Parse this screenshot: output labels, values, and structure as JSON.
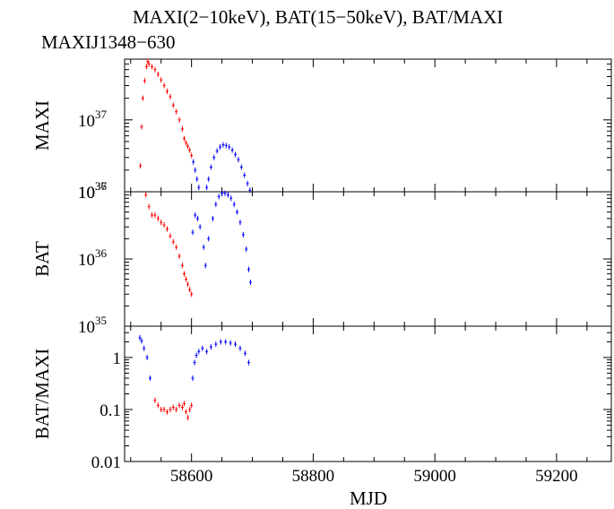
{
  "chart_data": {
    "type": "scatter",
    "title": "MAXI(2−10keV), BAT(15−50keV), BAT/MAXI",
    "subtitle": "MAXIJ1348−630",
    "xlabel": "MJD",
    "xlim": [
      58490,
      59290
    ],
    "xticks": [
      58600,
      58800,
      59000,
      59200
    ],
    "colors": {
      "early": "#ff0000",
      "late": "#0000ff"
    },
    "panels": [
      {
        "name": "MAXI",
        "ylabel": "MAXI",
        "scale": "log",
        "ylim": [
          1e+36,
          7e+37
        ],
        "yticks": [
          {
            "value": 1e+36,
            "base": "10",
            "exp": "36"
          },
          {
            "value": 1e+37,
            "base": "10",
            "exp": "37"
          }
        ],
        "series": [
          {
            "color": "early",
            "points": [
              [
                58516,
                2.3e+36
              ],
              [
                58518,
                8e+36
              ],
              [
                58520,
                2e+37
              ],
              [
                58523,
                3.5e+37
              ],
              [
                58526,
                5.5e+37
              ],
              [
                58528,
                6.5e+37
              ],
              [
                58530,
                6e+37
              ],
              [
                58535,
                5.5e+37
              ],
              [
                58540,
                5e+37
              ],
              [
                58545,
                4.3e+37
              ],
              [
                58550,
                3.6e+37
              ],
              [
                58555,
                3e+37
              ],
              [
                58560,
                2.5e+37
              ],
              [
                58565,
                2.1e+37
              ],
              [
                58570,
                1.6e+37
              ],
              [
                58575,
                1.3e+37
              ],
              [
                58580,
                1e+37
              ],
              [
                58585,
                7.5e+36
              ],
              [
                58588,
                5.5e+36
              ],
              [
                58591,
                4.8e+36
              ],
              [
                58594,
                4.3e+36
              ],
              [
                58597,
                3.8e+36
              ],
              [
                58600,
                3.2e+36
              ]
            ]
          },
          {
            "color": "late",
            "points": [
              [
                58603,
                2.6e+36
              ],
              [
                58606,
                2e+36
              ],
              [
                58609,
                1.5e+36
              ],
              [
                58612,
                1.15e+36
              ],
              [
                58625,
                1.15e+36
              ],
              [
                58628,
                1.5e+36
              ],
              [
                58632,
                2.2e+36
              ],
              [
                58637,
                3e+36
              ],
              [
                58642,
                3.7e+36
              ],
              [
                58647,
                4.2e+36
              ],
              [
                58652,
                4.5e+36
              ],
              [
                58657,
                4.4e+36
              ],
              [
                58662,
                4.2e+36
              ],
              [
                58667,
                3.8e+36
              ],
              [
                58672,
                3.3e+36
              ],
              [
                58677,
                2.8e+36
              ],
              [
                58682,
                2.2e+36
              ],
              [
                58687,
                1.7e+36
              ],
              [
                58692,
                1.3e+36
              ],
              [
                58696,
                1.05e+36
              ]
            ]
          }
        ]
      },
      {
        "name": "BAT",
        "ylabel": "BAT",
        "scale": "log",
        "ylim": [
          1e+35,
          1e+37
        ],
        "yticks": [
          {
            "value": 1e+35,
            "base": "10",
            "exp": "35"
          },
          {
            "value": 1e+36,
            "base": "10",
            "exp": "36"
          },
          {
            "value": 1e+37,
            "base": "10",
            "exp": "37"
          }
        ],
        "series": [
          {
            "color": "early",
            "points": [
              [
                58525,
                9e+36
              ],
              [
                58530,
                6e+36
              ],
              [
                58535,
                4.5e+36
              ],
              [
                58540,
                4.5e+36
              ],
              [
                58545,
                4e+36
              ],
              [
                58550,
                3.5e+36
              ],
              [
                58555,
                3.2e+36
              ],
              [
                58560,
                2.8e+36
              ],
              [
                58565,
                2.2e+36
              ],
              [
                58570,
                1.8e+36
              ],
              [
                58575,
                1.5e+36
              ],
              [
                58580,
                1.1e+36
              ],
              [
                58585,
                8e+35
              ],
              [
                58588,
                6e+35
              ],
              [
                58591,
                5e+35
              ],
              [
                58594,
                4.2e+35
              ],
              [
                58597,
                3.5e+35
              ],
              [
                58600,
                3e+35
              ]
            ]
          },
          {
            "color": "late",
            "points": [
              [
                58602,
                2.5e+36
              ],
              [
                58606,
                4.5e+36
              ],
              [
                58610,
                4e+36
              ],
              [
                58614,
                3e+36
              ],
              [
                58620,
                1.5e+36
              ],
              [
                58623,
                8e+35
              ],
              [
                58628,
                2e+36
              ],
              [
                58635,
                4e+36
              ],
              [
                58640,
                6.5e+36
              ],
              [
                58645,
                8.5e+36
              ],
              [
                58650,
                9.5e+36
              ],
              [
                58655,
                9.5e+36
              ],
              [
                58660,
                9e+36
              ],
              [
                58665,
                8e+36
              ],
              [
                58670,
                6.5e+36
              ],
              [
                58675,
                5e+36
              ],
              [
                58680,
                3.5e+36
              ],
              [
                58685,
                2.3e+36
              ],
              [
                58690,
                1.4e+36
              ],
              [
                58694,
                7e+35
              ],
              [
                58697,
                4.5e+35
              ]
            ]
          }
        ]
      },
      {
        "name": "BAT/MAXI",
        "ylabel": "BAT/MAXI",
        "scale": "log",
        "ylim": [
          0.01,
          4
        ],
        "yticks": [
          {
            "value": 0.01,
            "label": "0.01"
          },
          {
            "value": 0.1,
            "label": "0.1"
          },
          {
            "value": 1,
            "label": "1"
          }
        ],
        "series": [
          {
            "color": "early",
            "points": [
              [
                58540,
                0.15
              ],
              [
                58545,
                0.12
              ],
              [
                58550,
                0.1
              ],
              [
                58555,
                0.1
              ],
              [
                58560,
                0.09
              ],
              [
                58565,
                0.1
              ],
              [
                58570,
                0.11
              ],
              [
                58575,
                0.1
              ],
              [
                58580,
                0.12
              ],
              [
                58585,
                0.11
              ],
              [
                58588,
                0.13
              ],
              [
                58591,
                0.09
              ],
              [
                58594,
                0.07
              ],
              [
                58597,
                0.1
              ],
              [
                58600,
                0.12
              ]
            ]
          },
          {
            "color": "late",
            "points": [
              [
                58515,
                2.4
              ],
              [
                58518,
                2.1
              ],
              [
                58522,
                1.5
              ],
              [
                58527,
                1.0
              ],
              [
                58532,
                0.4
              ],
              [
                58602,
                0.4
              ],
              [
                58605,
                0.8
              ],
              [
                58608,
                1.1
              ],
              [
                58612,
                1.3
              ],
              [
                58618,
                1.5
              ],
              [
                58625,
                1.3
              ],
              [
                58632,
                1.6
              ],
              [
                58640,
                1.8
              ],
              [
                58648,
                2.0
              ],
              [
                58656,
                2.0
              ],
              [
                58664,
                1.9
              ],
              [
                58672,
                1.8
              ],
              [
                58680,
                1.5
              ],
              [
                58688,
                1.2
              ],
              [
                58694,
                0.8
              ]
            ]
          }
        ]
      }
    ]
  }
}
